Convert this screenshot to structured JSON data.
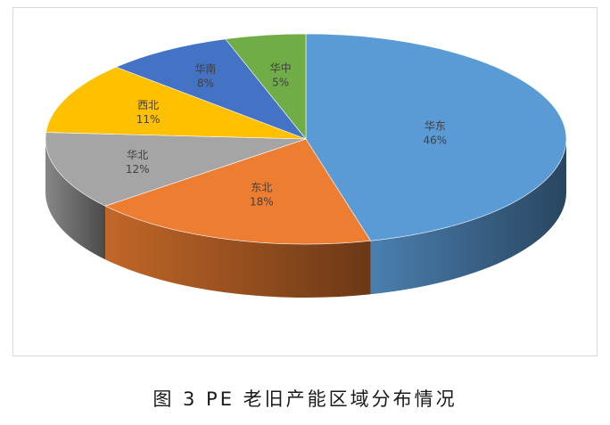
{
  "caption": "图 3 PE 老旧产能区域分布情况",
  "chart_data": {
    "type": "pie",
    "style": "3d",
    "title": "",
    "slices": [
      {
        "name": "华东",
        "value": 46,
        "label": "46%",
        "color": "#5b9bd5"
      },
      {
        "name": "东北",
        "value": 18,
        "label": "18%",
        "color": "#ed7d31"
      },
      {
        "name": "华北",
        "value": 12,
        "label": "12%",
        "color": "#a5a5a5"
      },
      {
        "name": "西北",
        "value": 11,
        "label": "11%",
        "color": "#ffc000"
      },
      {
        "name": "华南",
        "value": 8,
        "label": "8%",
        "color": "#4472c4"
      },
      {
        "name": "华中",
        "value": 5,
        "label": "5%",
        "color": "#70ad47"
      }
    ]
  }
}
